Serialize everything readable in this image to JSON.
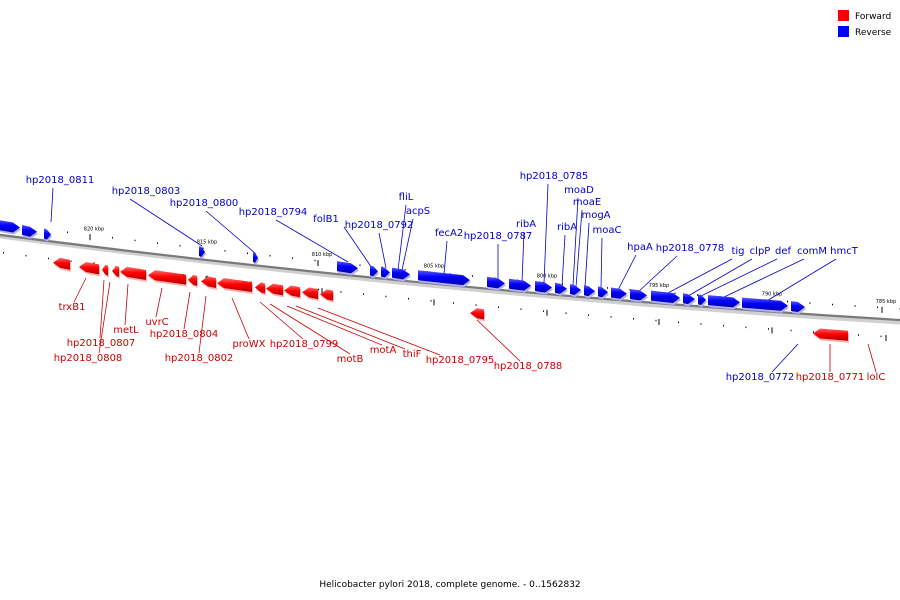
{
  "legend": {
    "forward_label": "Forward",
    "reverse_label": "Reverse",
    "forward_color": "#ff0000",
    "reverse_color": "#0000ff"
  },
  "caption": "Helicobacter pylori 2018, complete genome. - 0..1562832",
  "chart_data": {
    "type": "linear-genome-map",
    "title": "Helicobacter pylori 2018, complete genome. - 0..1562832",
    "sequence_range": [
      0,
      1562832
    ],
    "ticks_kbp": [
      "820 kbp",
      "815 kbp",
      "810 kbp",
      "805 kbp",
      "800 kbp",
      "795 kbp",
      "790 kbp",
      "785 kbp"
    ],
    "features": [
      {
        "name": "hp2018_0811",
        "strand": "reverse"
      },
      {
        "name": "hp2018_0803",
        "strand": "reverse"
      },
      {
        "name": "hp2018_0800",
        "strand": "reverse"
      },
      {
        "name": "hp2018_0794",
        "strand": "reverse"
      },
      {
        "name": "folB1",
        "strand": "reverse"
      },
      {
        "name": "hp2018_0792",
        "strand": "reverse"
      },
      {
        "name": "fliL",
        "strand": "reverse"
      },
      {
        "name": "acpS",
        "strand": "reverse"
      },
      {
        "name": "fecA2",
        "strand": "reverse"
      },
      {
        "name": "hp2018_0787",
        "strand": "reverse"
      },
      {
        "name": "ribA",
        "strand": "reverse"
      },
      {
        "name": "hp2018_0785",
        "strand": "reverse"
      },
      {
        "name": "ribA",
        "strand": "reverse"
      },
      {
        "name": "moaD",
        "strand": "reverse"
      },
      {
        "name": "moaE",
        "strand": "reverse"
      },
      {
        "name": "mogA",
        "strand": "reverse"
      },
      {
        "name": "moaC",
        "strand": "reverse"
      },
      {
        "name": "hpaA",
        "strand": "reverse"
      },
      {
        "name": "hp2018_0778",
        "strand": "reverse"
      },
      {
        "name": "tig",
        "strand": "reverse"
      },
      {
        "name": "clpP",
        "strand": "reverse"
      },
      {
        "name": "def",
        "strand": "reverse"
      },
      {
        "name": "comM",
        "strand": "reverse"
      },
      {
        "name": "hmcT",
        "strand": "reverse"
      },
      {
        "name": "hp2018_0772",
        "strand": "reverse"
      },
      {
        "name": "trxB1",
        "strand": "forward"
      },
      {
        "name": "hp2018_0807",
        "strand": "forward"
      },
      {
        "name": "hp2018_0808",
        "strand": "forward"
      },
      {
        "name": "metL",
        "strand": "forward"
      },
      {
        "name": "uvrC",
        "strand": "forward"
      },
      {
        "name": "hp2018_0804",
        "strand": "forward"
      },
      {
        "name": "hp2018_0802",
        "strand": "forward"
      },
      {
        "name": "proWX",
        "strand": "forward"
      },
      {
        "name": "hp2018_0799",
        "strand": "forward"
      },
      {
        "name": "motB",
        "strand": "forward"
      },
      {
        "name": "motA",
        "strand": "forward"
      },
      {
        "name": "thiF",
        "strand": "forward"
      },
      {
        "name": "hp2018_0795",
        "strand": "forward"
      },
      {
        "name": "hp2018_0788",
        "strand": "forward"
      },
      {
        "name": "hp2018_0771",
        "strand": "forward"
      },
      {
        "name": "lolC",
        "strand": "forward"
      }
    ]
  }
}
